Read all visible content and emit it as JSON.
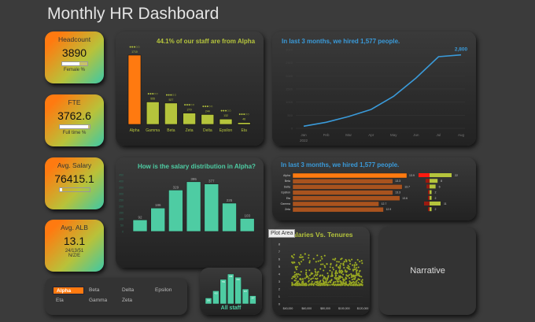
{
  "title": "Monthly HR Dashboard",
  "cards": [
    {
      "label": "Headcount",
      "value": "3890",
      "bar_fraction": 0.7,
      "sub": "Female %"
    },
    {
      "label": "FTE",
      "value": "3762.6",
      "bar_fraction": 0.95,
      "sub": "Full time %"
    },
    {
      "label": "Avg. Salary",
      "value": "76415.1",
      "bar_fraction": 0.08,
      "sub": ""
    },
    {
      "label": "Avg. ALB",
      "value": "13.1",
      "sub": "24/13/51",
      "sub2": "N/Z/E"
    }
  ],
  "colors": {
    "accent": "#ff7a10",
    "lime": "#b5c43c",
    "teal": "#4ecca3",
    "blue": "#3a9ad9"
  },
  "chart_data": [
    {
      "type": "bar",
      "title": "44.1% of our staff are from Alpha",
      "categories": [
        "Alpha",
        "Gamma",
        "Beta",
        "Zeta",
        "Delta",
        "Epsilon",
        "Eta"
      ],
      "values": [
        1710,
        555,
        527,
        279,
        244,
        132,
        46
      ],
      "rating": "●●●○○",
      "highlight": "Alpha"
    },
    {
      "type": "line",
      "title": "In last 3 months, we hired 1,577 people.",
      "categories": [
        "Jan",
        "Feb",
        "Mar",
        "Apr",
        "May",
        "Jun",
        "Jul",
        "Aug"
      ],
      "year_label": "2022",
      "values": [
        80,
        230,
        450,
        720,
        1220,
        1920,
        2730,
        2800
      ],
      "end_label": "2,800",
      "ylim": [
        0,
        3000
      ],
      "yticks": [
        0,
        500,
        1000,
        1500,
        2000,
        2500,
        3000
      ]
    },
    {
      "type": "bar",
      "title": "How is the salary distribution in Alpha?",
      "values": [
        92,
        186,
        329,
        395,
        377,
        225,
        103
      ],
      "ylim": [
        0,
        450
      ],
      "yticks": [
        0,
        50,
        100,
        150,
        200,
        250,
        300,
        350,
        400,
        450
      ]
    },
    {
      "type": "bar",
      "orientation": "horizontal",
      "title": "In last 3 months, we hired 1,577 people.",
      "categories": [
        "Alpha",
        "Beta",
        "Delta",
        "Epsilon",
        "Eta",
        "Gamma",
        "Zeta"
      ],
      "values": [
        13.9,
        13.3,
        13.7,
        13.3,
        13.6,
        12.7,
        12.9
      ],
      "side_values": [
        22,
        8,
        6,
        2,
        2,
        11,
        2
      ]
    },
    {
      "type": "scatter",
      "title": "Salaries Vs. Tenures",
      "xticks": [
        "$40,000",
        "$60,000",
        "$80,000",
        "$100,000",
        "$120,000"
      ],
      "yticks": [
        0,
        1,
        2,
        3,
        4,
        5,
        6,
        7,
        8
      ],
      "xlim": [
        40000,
        120000
      ],
      "ylim": [
        0,
        8
      ]
    },
    {
      "type": "bar",
      "title": "All staff",
      "values": [
        186,
        410,
        769,
        938,
        838,
        467,
        257
      ]
    }
  ],
  "tooltip": "Plot Area",
  "narrative": "Narrative",
  "slicer": {
    "items": [
      "Alpha",
      "Beta",
      "Delta",
      "Epsilon",
      "Eta",
      "Gamma",
      "Zeta"
    ],
    "selected": "Alpha"
  }
}
